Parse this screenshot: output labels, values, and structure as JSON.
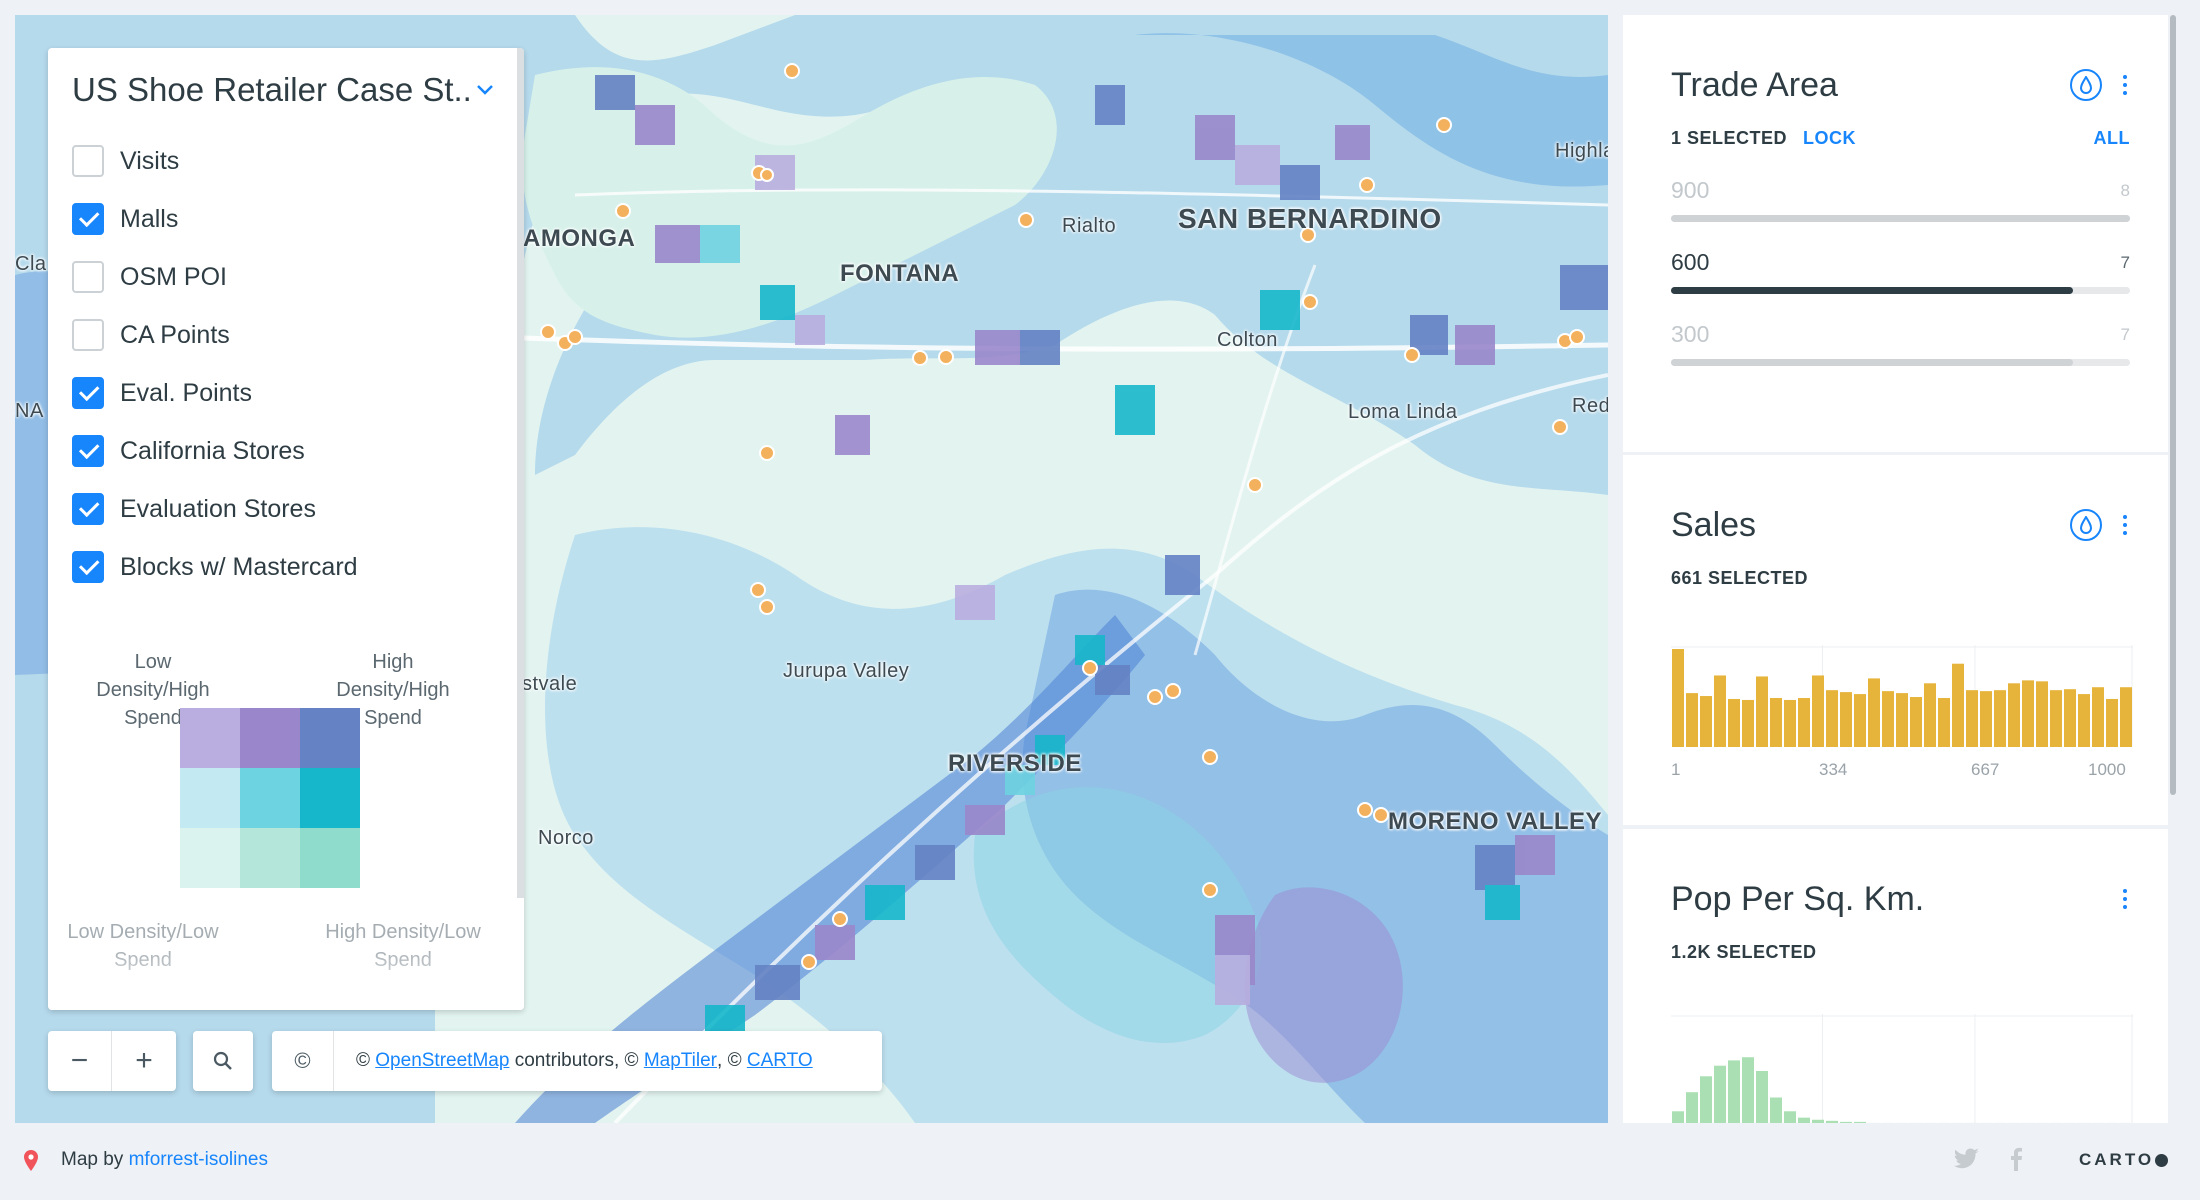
{
  "map": {
    "places": [
      {
        "name": "SAN BERNARDINO",
        "size": "big"
      },
      {
        "name": "FONTANA",
        "size": "mid"
      },
      {
        "name": "AMONGA",
        "size": "mid"
      },
      {
        "name": "Rialto",
        "size": "sm"
      },
      {
        "name": "Colton",
        "size": "sm"
      },
      {
        "name": "Highland",
        "size": "sm"
      },
      {
        "name": "Loma Linda",
        "size": "sm"
      },
      {
        "name": "Red",
        "size": "sm"
      },
      {
        "name": "Jurupa Valley",
        "size": "sm"
      },
      {
        "name": "RIVERSIDE",
        "size": "mid"
      },
      {
        "name": "MORENO VALLEY",
        "size": "mid"
      },
      {
        "name": "Norco",
        "size": "sm"
      },
      {
        "name": "stvale",
        "size": "sm"
      },
      {
        "name": "Cla",
        "size": "sm"
      },
      {
        "name": "NA",
        "size": "sm"
      }
    ]
  },
  "layers_panel": {
    "title": "US Shoe Retailer Case St...",
    "items": [
      {
        "label": "Visits",
        "checked": false
      },
      {
        "label": "Malls",
        "checked": true
      },
      {
        "label": "OSM POI",
        "checked": false
      },
      {
        "label": "CA Points",
        "checked": false
      },
      {
        "label": "Eval. Points",
        "checked": true
      },
      {
        "label": "California Stores",
        "checked": true
      },
      {
        "label": "Evaluation Stores",
        "checked": true
      },
      {
        "label": "Blocks w/ Mastercard",
        "checked": true
      }
    ],
    "legend": {
      "top_left": "Low Density/High Spend",
      "top_right": "High Density/High Spend",
      "bottom_left": "Low Density/Low Spend",
      "bottom_right": "High Density/Low Spend",
      "colors": [
        "#b9aedf",
        "#9a87cb",
        "#6482c4",
        "#c3eaf3",
        "#6ed3e1",
        "#17b7cb",
        "#daf3ee",
        "#b5e6da",
        "#8fdccd"
      ]
    }
  },
  "controls": {
    "zoom_out": "−",
    "zoom_in": "+",
    "attribution": {
      "icon": "©",
      "prefix": "© ",
      "osm": "OpenStreetMap",
      "mid": " contributors, © ",
      "maptiler": "MapTiler",
      "sep": ", © ",
      "carto": "CARTO"
    }
  },
  "widgets": {
    "trade_area": {
      "title": "Trade Area",
      "selected": "1 SELECTED",
      "lock": "LOCK",
      "all": "ALL",
      "rows": [
        {
          "label": "900",
          "count": "8",
          "fraction": 1.0,
          "active": false
        },
        {
          "label": "600",
          "count": "7",
          "fraction": 0.875,
          "active": true
        },
        {
          "label": "300",
          "count": "7",
          "fraction": 0.875,
          "active": false
        }
      ]
    },
    "sales": {
      "title": "Sales",
      "selected": "661 SELECTED",
      "axis": [
        "1",
        "334",
        "667",
        "1000"
      ],
      "color": "#e6b43b",
      "histogram": [
        1.0,
        0.55,
        0.52,
        0.73,
        0.49,
        0.48,
        0.72,
        0.5,
        0.48,
        0.5,
        0.73,
        0.58,
        0.56,
        0.54,
        0.7,
        0.57,
        0.55,
        0.51,
        0.65,
        0.5,
        0.85,
        0.58,
        0.57,
        0.58,
        0.65,
        0.68,
        0.67,
        0.58,
        0.59,
        0.54,
        0.61,
        0.49,
        0.61
      ]
    },
    "pop": {
      "title": "Pop Per Sq. Km.",
      "selected": "1.2K SELECTED",
      "color": "#a9dfb3",
      "histogram": [
        0.12,
        0.3,
        0.45,
        0.55,
        0.6,
        0.63,
        0.5,
        0.25,
        0.12,
        0.06,
        0.04,
        0.03,
        0.02,
        0.02,
        0.01,
        0.01,
        0.01,
        0.01,
        0.01,
        0.01,
        0.01,
        0.01,
        0.01,
        0.01,
        0.01,
        0.01,
        0.01,
        0.01,
        0.01,
        0.01,
        0.01,
        0.01,
        0.01
      ]
    }
  },
  "footer": {
    "prefix": "Map by ",
    "author": "mforrest-isolines",
    "twitter_icon": "twitter-icon",
    "facebook_icon": "facebook-icon",
    "brand": "CARTO"
  }
}
